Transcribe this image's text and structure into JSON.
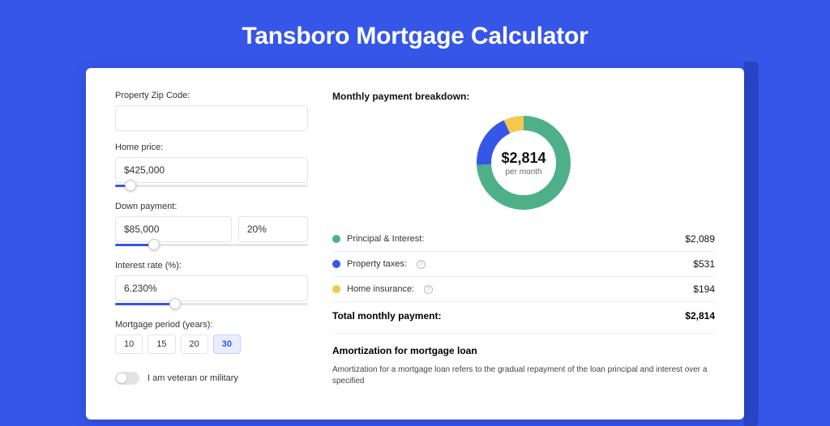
{
  "page": {
    "title": "Tansboro Mortgage Calculator",
    "background_color": "#3656e8"
  },
  "form": {
    "zip": {
      "label": "Property Zip Code:",
      "value": ""
    },
    "home_price": {
      "label": "Home price:",
      "value": "$425,000",
      "slider": {
        "fill_pct": 8,
        "fill_color": "#3656e8"
      }
    },
    "down_payment": {
      "label": "Down payment:",
      "amount": "$85,000",
      "percent": "20%",
      "slider": {
        "fill_pct": 20,
        "fill_color": "#3656e8"
      }
    },
    "interest_rate": {
      "label": "Interest rate (%):",
      "value": "6.230%",
      "slider": {
        "fill_pct": 31,
        "fill_color": "#3656e8"
      }
    },
    "mortgage_period": {
      "label": "Mortgage period (years):",
      "options": [
        "10",
        "15",
        "20",
        "30"
      ],
      "selected": "30"
    },
    "veteran": {
      "label": "I am veteran or military",
      "checked": false
    }
  },
  "breakdown": {
    "title": "Monthly payment breakdown:",
    "donut": {
      "center_amount": "$2,814",
      "center_sub": "per month",
      "thickness": 18,
      "segments": [
        {
          "key": "principal_interest",
          "value": 2089,
          "color": "#4db088"
        },
        {
          "key": "property_taxes",
          "value": 531,
          "color": "#3656e8"
        },
        {
          "key": "home_insurance",
          "value": 194,
          "color": "#f2c94c"
        }
      ]
    },
    "items": [
      {
        "label": "Principal & Interest:",
        "value": "$2,089",
        "color": "#4db088",
        "help": false
      },
      {
        "label": "Property taxes:",
        "value": "$531",
        "color": "#3656e8",
        "help": true
      },
      {
        "label": "Home insurance:",
        "value": "$194",
        "color": "#f2c94c",
        "help": true
      }
    ],
    "total": {
      "label": "Total monthly payment:",
      "value": "$2,814"
    }
  },
  "amortization": {
    "title": "Amortization for mortgage loan",
    "text": "Amortization for a mortgage loan refers to the gradual repayment of the loan principal and interest over a specified"
  }
}
